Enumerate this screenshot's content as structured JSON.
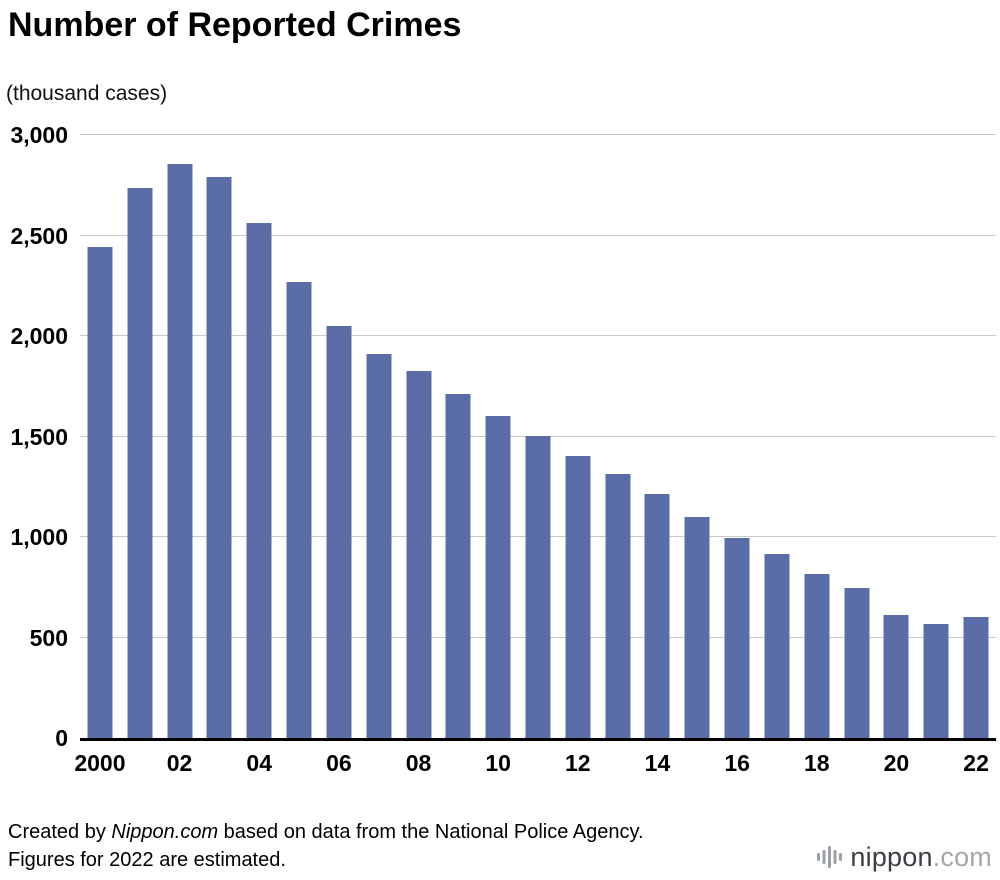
{
  "title": "Number of Reported Crimes",
  "subtitle": "(thousand cases)",
  "chart_data": {
    "type": "bar",
    "title": "Number of Reported Crimes",
    "unit_label": "(thousand cases)",
    "x": [
      2000,
      2001,
      2002,
      2003,
      2004,
      2005,
      2006,
      2007,
      2008,
      2009,
      2010,
      2011,
      2012,
      2013,
      2014,
      2015,
      2016,
      2017,
      2018,
      2019,
      2020,
      2021,
      2022
    ],
    "values": [
      2444,
      2735,
      2854,
      2790,
      2563,
      2269,
      2051,
      1909,
      1826,
      1714,
      1604,
      1503,
      1403,
      1314,
      1212,
      1099,
      996,
      915,
      817,
      748,
      614,
      568,
      601
    ],
    "xtick_labels": [
      "2000",
      "02",
      "04",
      "06",
      "08",
      "10",
      "12",
      "14",
      "16",
      "18",
      "20",
      "22"
    ],
    "ytick_values": [
      0,
      500,
      1000,
      1500,
      2000,
      2500,
      3000
    ],
    "ytick_labels": [
      "0",
      "500",
      "1,000",
      "1,500",
      "2,000",
      "2,500",
      "3,000"
    ],
    "ylim": [
      0,
      3000
    ],
    "xlabel": "",
    "ylabel": "(thousand cases)",
    "grid": true,
    "legend": "none",
    "bar_color": "#5B6DA6"
  },
  "footer": {
    "note_prefix": "Created by ",
    "note_italic": "Nippon.com",
    "note_rest": " based on data from the National Police Agency. Figures for 2022 are estimated.",
    "logo_name": "nippon",
    "logo_tld": ".com",
    "logo_icon": "sound-bars-icon",
    "logo_icon_color": "#9aa0a6"
  }
}
